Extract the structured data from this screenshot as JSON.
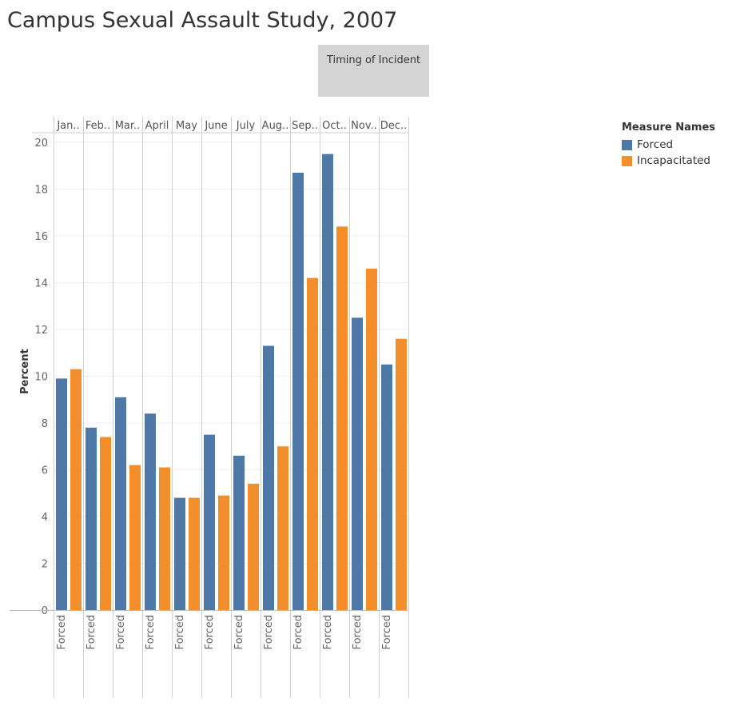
{
  "page": {
    "title": "Campus Sexual Assault Study, 2007",
    "column_header": "Timing of Incident"
  },
  "legend": {
    "title": "Measure Names",
    "items": [
      {
        "label": "Forced",
        "color": "#4e79a7"
      },
      {
        "label": "Incapacitated",
        "color": "#f28e2b"
      }
    ]
  },
  "chart_data": {
    "type": "bar",
    "title": "Campus Sexual Assault Study, 2007",
    "xlabel": "Timing of Incident",
    "ylabel": "Percent",
    "ylim": [
      0,
      20.5
    ],
    "yticks": [
      0,
      2,
      4,
      6,
      8,
      10,
      12,
      14,
      16,
      18,
      20
    ],
    "grid": true,
    "legend_position": "top-right",
    "categories": [
      "Jan..",
      "Feb..",
      "Mar..",
      "April",
      "May",
      "June",
      "July",
      "Aug..",
      "Sep..",
      "Oct..",
      "Nov..",
      "Dec.."
    ],
    "bottom_labels": [
      "Forced",
      "Forced",
      "Forced",
      "Forced",
      "Forced",
      "Forced",
      "Forced",
      "Forced",
      "Forced",
      "Forced",
      "Forced",
      "Forced"
    ],
    "series": [
      {
        "name": "Forced",
        "color": "#4e79a7",
        "values": [
          9.9,
          7.8,
          9.1,
          8.4,
          4.8,
          7.5,
          6.6,
          11.3,
          18.7,
          19.5,
          12.5,
          10.5
        ]
      },
      {
        "name": "Incapacitated",
        "color": "#f28e2b",
        "values": [
          10.3,
          7.4,
          6.2,
          6.1,
          4.8,
          4.9,
          5.4,
          7.0,
          14.2,
          16.4,
          14.6,
          11.6
        ]
      }
    ]
  }
}
